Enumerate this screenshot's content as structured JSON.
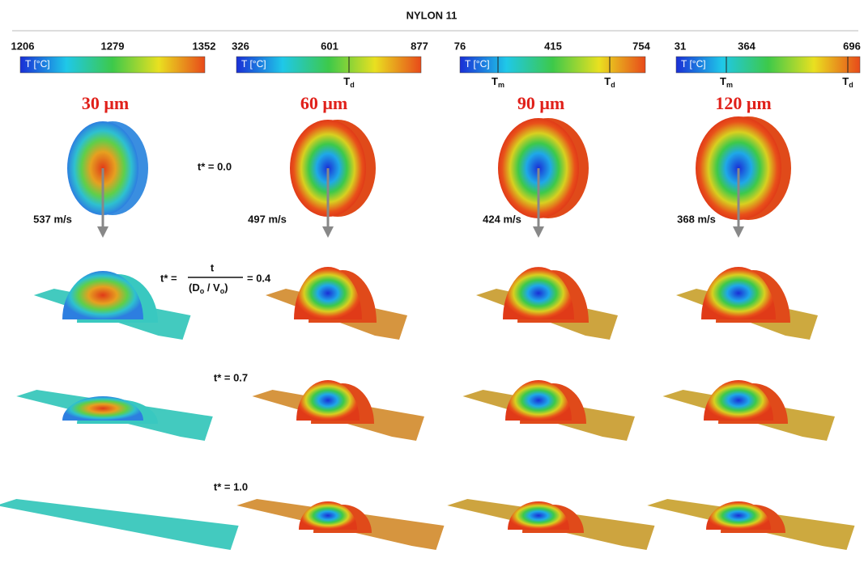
{
  "title": "NYLON 11",
  "colorbars": [
    {
      "ticks": [
        1206,
        1279,
        1352
      ],
      "label": "T [°C]",
      "markers": []
    },
    {
      "ticks": [
        326,
        601,
        877
      ],
      "label": "T [°C]",
      "markers": [
        {
          "symbol": "T",
          "sub": "d"
        }
      ]
    },
    {
      "ticks": [
        76,
        415,
        754
      ],
      "label": "T [°C]",
      "markers": [
        {
          "symbol": "T",
          "sub": "m"
        },
        {
          "symbol": "T",
          "sub": "d"
        }
      ]
    },
    {
      "ticks": [
        31,
        364,
        696
      ],
      "label": "T [°C]",
      "markers": [
        {
          "symbol": "T",
          "sub": "m"
        },
        {
          "symbol": "T",
          "sub": "d"
        }
      ]
    }
  ],
  "columns": [
    {
      "size": "30 μm",
      "velocity": "537 m/s"
    },
    {
      "size": "60 μm",
      "velocity": "497 m/s"
    },
    {
      "size": "90 μm",
      "velocity": "424 m/s"
    },
    {
      "size": "120 μm",
      "velocity": "368 m/s"
    }
  ],
  "times": [
    "t* = 0.0",
    "t* = 0.7",
    "t* = 1.0"
  ],
  "formula": {
    "lhs": "t* =",
    "numerator": "t",
    "denominator": [
      "(D",
      "o",
      " / V",
      "o",
      ")"
    ],
    "rhs": "= 0.4"
  }
}
